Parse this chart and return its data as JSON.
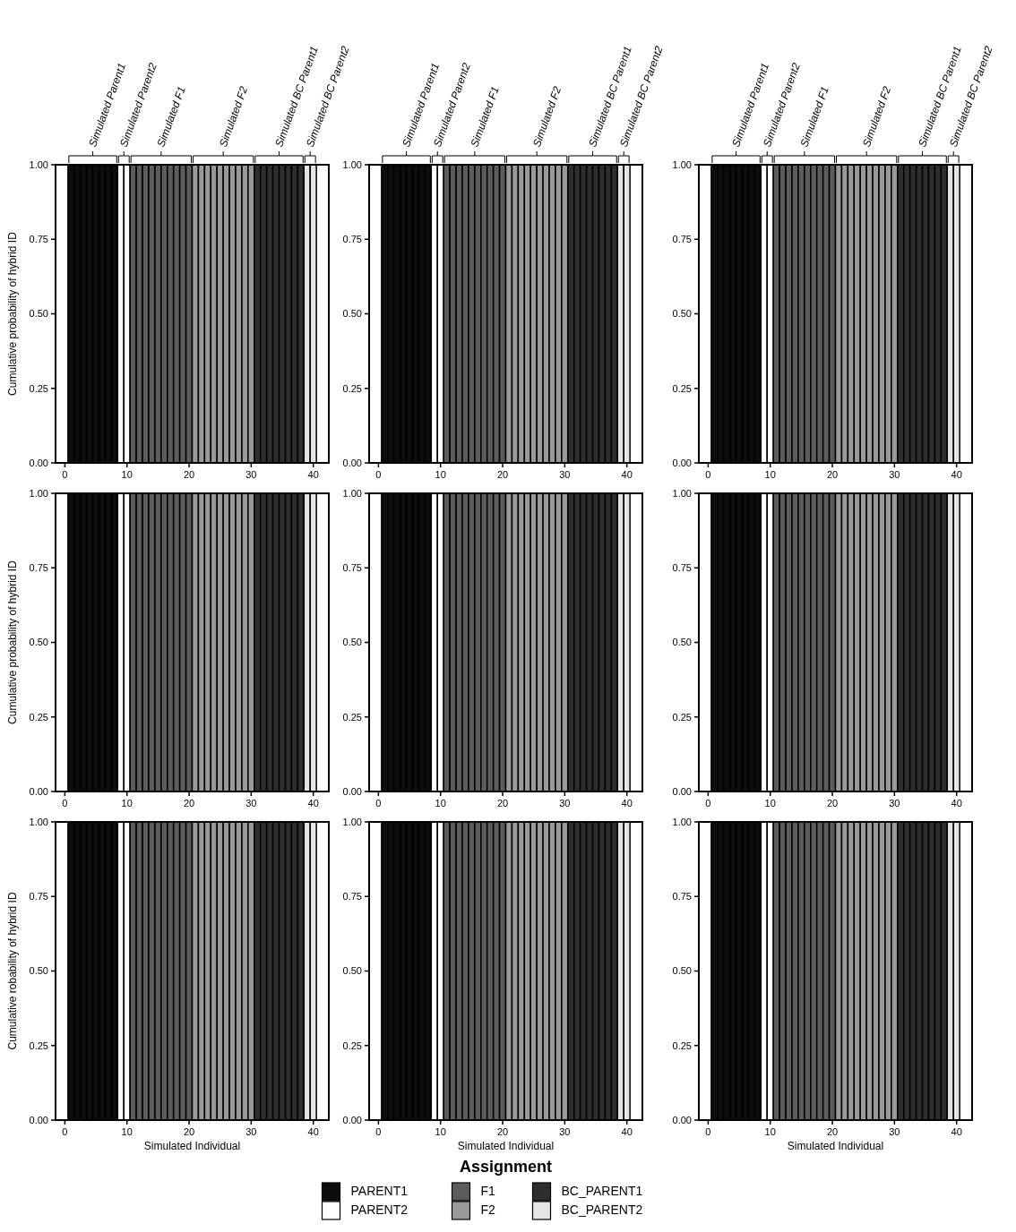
{
  "chart_data": [
    {
      "type": "bar",
      "ylabel": "Cumulative probability of hybrid ID",
      "xlim": [
        -1.5,
        42.5
      ],
      "xticks": [
        0,
        10,
        20,
        30,
        40
      ],
      "ylim": [
        0,
        1
      ],
      "yticks": [
        {
          "value": 0,
          "label": "0.00"
        },
        {
          "value": 0.25,
          "label": "0.25"
        },
        {
          "value": 0.5,
          "label": "0.50"
        },
        {
          "value": 0.75,
          "label": "0.75"
        },
        {
          "value": 1,
          "label": "1.00"
        }
      ],
      "annotations": [
        {
          "text": "Simulated Parent1",
          "x": 4.5,
          "y": 1
        },
        {
          "text": "Simulated Parent2",
          "x": 9.5,
          "y": 1
        },
        {
          "text": "Simulated F1",
          "x": 15.5,
          "y": 1
        },
        {
          "text": "Simulated F2",
          "x": 25.5,
          "y": 1
        },
        {
          "text": "Simulated BC Parent1",
          "x": 34.5,
          "y": 1
        },
        {
          "text": "Simulated BC Parent2",
          "x": 39.5,
          "y": 1
        }
      ],
      "series": [
        {
          "color": "#0d0d0d",
          "x": [
            1,
            2,
            3,
            4,
            5,
            6,
            7,
            8
          ],
          "values": [
            1,
            1,
            1,
            1,
            1,
            1,
            1,
            1
          ]
        },
        {
          "color": "#ffffff",
          "x": [
            9,
            10
          ],
          "values": [
            1,
            1
          ]
        },
        {
          "color": "#5c5c5c",
          "x": [
            11,
            12,
            13,
            14,
            15,
            16,
            17,
            18,
            19,
            20
          ],
          "values": [
            1,
            1,
            1,
            1,
            1,
            1,
            1,
            1,
            1,
            1
          ]
        },
        {
          "color": "#999999",
          "x": [
            21,
            22,
            23,
            24,
            25,
            26,
            27,
            28,
            29,
            30
          ],
          "values": [
            1,
            1,
            1,
            1,
            1,
            1,
            1,
            1,
            1,
            1
          ]
        },
        {
          "color": "#2e2e2e",
          "x": [
            31,
            32,
            33,
            34,
            35,
            36,
            37,
            38
          ],
          "values": [
            1,
            1,
            1,
            1,
            1,
            1,
            1,
            1
          ]
        },
        {
          "color": "#e5e5e5",
          "x": [
            39,
            40
          ],
          "values": [
            1,
            1
          ]
        }
      ]
    },
    {
      "type": "bar",
      "xlim": [
        -1.5,
        42.5
      ],
      "xticks": [
        0,
        10,
        20,
        30,
        40
      ],
      "ylim": [
        0,
        1
      ],
      "yticks": [
        {
          "value": 0,
          "label": "0.00"
        },
        {
          "value": 0.25,
          "label": "0.25"
        },
        {
          "value": 0.5,
          "label": "0.50"
        },
        {
          "value": 0.75,
          "label": "0.75"
        },
        {
          "value": 1,
          "label": "1.00"
        }
      ],
      "annotations": [
        {
          "text": "Simulated Parent1",
          "x": 4.5,
          "y": 1
        },
        {
          "text": "Simulated Parent2",
          "x": 9.5,
          "y": 1
        },
        {
          "text": "Simulated F1",
          "x": 15.5,
          "y": 1
        },
        {
          "text": "Simulated F2",
          "x": 25.5,
          "y": 1
        },
        {
          "text": "Simulated BC Parent1",
          "x": 34.5,
          "y": 1
        },
        {
          "text": "Simulated BC Parent2",
          "x": 39.5,
          "y": 1
        }
      ],
      "series": [
        {
          "color": "#0d0d0d",
          "x": [
            1,
            2,
            3,
            4,
            5,
            6,
            7,
            8
          ],
          "values": [
            1,
            1,
            1,
            1,
            1,
            1,
            1,
            1
          ]
        },
        {
          "color": "#ffffff",
          "x": [
            9,
            10
          ],
          "values": [
            1,
            1
          ]
        },
        {
          "color": "#5c5c5c",
          "x": [
            11,
            12,
            13,
            14,
            15,
            16,
            17,
            18,
            19,
            20
          ],
          "values": [
            1,
            1,
            1,
            1,
            1,
            1,
            1,
            1,
            1,
            1
          ]
        },
        {
          "color": "#999999",
          "x": [
            21,
            22,
            23,
            24,
            25,
            26,
            27,
            28,
            29,
            30
          ],
          "values": [
            1,
            1,
            1,
            1,
            1,
            1,
            1,
            1,
            1,
            1
          ]
        },
        {
          "color": "#2e2e2e",
          "x": [
            31,
            32,
            33,
            34,
            35,
            36,
            37,
            38
          ],
          "values": [
            1,
            1,
            1,
            1,
            1,
            1,
            1,
            1
          ]
        },
        {
          "color": "#e5e5e5",
          "x": [
            39,
            40
          ],
          "values": [
            1,
            1
          ]
        }
      ]
    },
    {
      "type": "bar",
      "xlim": [
        -1.5,
        42.5
      ],
      "xticks": [
        0,
        10,
        20,
        30,
        40
      ],
      "ylim": [
        0,
        1
      ],
      "yticks": [
        {
          "value": 0,
          "label": "0.00"
        },
        {
          "value": 0.25,
          "label": "0.25"
        },
        {
          "value": 0.5,
          "label": "0.50"
        },
        {
          "value": 0.75,
          "label": "0.75"
        },
        {
          "value": 1,
          "label": "1.00"
        }
      ],
      "annotations": [
        {
          "text": "Simulated Parent1",
          "x": 4.5,
          "y": 1
        },
        {
          "text": "Simulated Parent2",
          "x": 9.5,
          "y": 1
        },
        {
          "text": "Simulated F1",
          "x": 15.5,
          "y": 1
        },
        {
          "text": "Simulated F2",
          "x": 25.5,
          "y": 1
        },
        {
          "text": "Simulated BC Parent1",
          "x": 34.5,
          "y": 1
        },
        {
          "text": "Simulated BC Parent2",
          "x": 39.5,
          "y": 1
        }
      ],
      "series": [
        {
          "color": "#0d0d0d",
          "x": [
            1,
            2,
            3,
            4,
            5,
            6,
            7,
            8
          ],
          "values": [
            1,
            1,
            1,
            1,
            1,
            1,
            1,
            1
          ]
        },
        {
          "color": "#ffffff",
          "x": [
            9,
            10
          ],
          "values": [
            1,
            1
          ]
        },
        {
          "color": "#5c5c5c",
          "x": [
            11,
            12,
            13,
            14,
            15,
            16,
            17,
            18,
            19,
            20
          ],
          "values": [
            1,
            1,
            1,
            1,
            1,
            1,
            1,
            1,
            1,
            1
          ]
        },
        {
          "color": "#999999",
          "x": [
            21,
            22,
            23,
            24,
            25,
            26,
            27,
            28,
            29,
            30
          ],
          "values": [
            1,
            1,
            1,
            1,
            1,
            1,
            1,
            1,
            1,
            1
          ]
        },
        {
          "color": "#2e2e2e",
          "x": [
            31,
            32,
            33,
            34,
            35,
            36,
            37,
            38
          ],
          "values": [
            1,
            1,
            1,
            1,
            1,
            1,
            1,
            1
          ]
        },
        {
          "color": "#e5e5e5",
          "x": [
            39,
            40
          ],
          "values": [
            1,
            1
          ]
        }
      ]
    },
    {
      "type": "bar",
      "ylabel": "Cumulative probability of hybrid ID",
      "xlim": [
        -1.5,
        42.5
      ],
      "xticks": [
        0,
        10,
        20,
        30,
        40
      ],
      "ylim": [
        0,
        1
      ],
      "yticks": [
        {
          "value": 0,
          "label": "0.00"
        },
        {
          "value": 0.25,
          "label": "0.25"
        },
        {
          "value": 0.5,
          "label": "0.50"
        },
        {
          "value": 0.75,
          "label": "0.75"
        },
        {
          "value": 1,
          "label": "1.00"
        }
      ],
      "series": [
        {
          "color": "#0d0d0d",
          "x": [
            1,
            2,
            3,
            4,
            5,
            6,
            7,
            8
          ],
          "values": [
            1,
            1,
            1,
            1,
            1,
            1,
            1,
            1
          ]
        },
        {
          "color": "#ffffff",
          "x": [
            9,
            10
          ],
          "values": [
            1,
            1
          ]
        },
        {
          "color": "#5c5c5c",
          "x": [
            11,
            12,
            13,
            14,
            15,
            16,
            17,
            18,
            19,
            20
          ],
          "values": [
            1,
            1,
            1,
            1,
            1,
            1,
            1,
            1,
            1,
            1
          ]
        },
        {
          "color": "#999999",
          "x": [
            21,
            22,
            23,
            24,
            25,
            26,
            27,
            28,
            29,
            30
          ],
          "values": [
            1,
            1,
            1,
            1,
            1,
            1,
            1,
            1,
            1,
            1
          ]
        },
        {
          "color": "#2e2e2e",
          "x": [
            31,
            32,
            33,
            34,
            35,
            36,
            37,
            38
          ],
          "values": [
            1,
            1,
            1,
            1,
            1,
            1,
            1,
            1
          ]
        },
        {
          "color": "#e5e5e5",
          "x": [
            39,
            40
          ],
          "values": [
            1,
            1
          ]
        }
      ]
    },
    {
      "type": "bar",
      "xlim": [
        -1.5,
        42.5
      ],
      "xticks": [
        0,
        10,
        20,
        30,
        40
      ],
      "ylim": [
        0,
        1
      ],
      "yticks": [
        {
          "value": 0,
          "label": "0.00"
        },
        {
          "value": 0.25,
          "label": "0.25"
        },
        {
          "value": 0.5,
          "label": "0.50"
        },
        {
          "value": 0.75,
          "label": "0.75"
        },
        {
          "value": 1,
          "label": "1.00"
        }
      ],
      "series": [
        {
          "color": "#0d0d0d",
          "x": [
            1,
            2,
            3,
            4,
            5,
            6,
            7,
            8
          ],
          "values": [
            1,
            1,
            1,
            1,
            1,
            1,
            1,
            1
          ]
        },
        {
          "color": "#ffffff",
          "x": [
            9,
            10
          ],
          "values": [
            1,
            1
          ]
        },
        {
          "color": "#5c5c5c",
          "x": [
            11,
            12,
            13,
            14,
            15,
            16,
            17,
            18,
            19,
            20
          ],
          "values": [
            1,
            1,
            1,
            1,
            1,
            1,
            1,
            1,
            1,
            1
          ]
        },
        {
          "color": "#999999",
          "x": [
            21,
            22,
            23,
            24,
            25,
            26,
            27,
            28,
            29,
            30
          ],
          "values": [
            1,
            1,
            1,
            1,
            1,
            1,
            1,
            1,
            1,
            1
          ]
        },
        {
          "color": "#2e2e2e",
          "x": [
            31,
            32,
            33,
            34,
            35,
            36,
            37,
            38
          ],
          "values": [
            1,
            1,
            1,
            1,
            1,
            1,
            1,
            1
          ]
        },
        {
          "color": "#e5e5e5",
          "x": [
            39,
            40
          ],
          "values": [
            1,
            1
          ]
        }
      ]
    },
    {
      "type": "bar",
      "xlim": [
        -1.5,
        42.5
      ],
      "xticks": [
        0,
        10,
        20,
        30,
        40
      ],
      "ylim": [
        0,
        1
      ],
      "yticks": [
        {
          "value": 0,
          "label": "0.00"
        },
        {
          "value": 0.25,
          "label": "0.25"
        },
        {
          "value": 0.5,
          "label": "0.50"
        },
        {
          "value": 0.75,
          "label": "0.75"
        },
        {
          "value": 1,
          "label": "1.00"
        }
      ],
      "series": [
        {
          "color": "#0d0d0d",
          "x": [
            1,
            2,
            3,
            4,
            5,
            6,
            7,
            8
          ],
          "values": [
            1,
            1,
            1,
            1,
            1,
            1,
            1,
            1
          ]
        },
        {
          "color": "#ffffff",
          "x": [
            9,
            10
          ],
          "values": [
            1,
            1
          ]
        },
        {
          "color": "#5c5c5c",
          "x": [
            11,
            12,
            13,
            14,
            15,
            16,
            17,
            18,
            19,
            20
          ],
          "values": [
            1,
            1,
            1,
            1,
            1,
            1,
            1,
            1,
            1,
            1
          ]
        },
        {
          "color": "#999999",
          "x": [
            21,
            22,
            23,
            24,
            25,
            26,
            27,
            28,
            29,
            30
          ],
          "values": [
            1,
            1,
            1,
            1,
            1,
            1,
            1,
            1,
            1,
            1
          ]
        },
        {
          "color": "#2e2e2e",
          "x": [
            31,
            32,
            33,
            34,
            35,
            36,
            37,
            38
          ],
          "values": [
            1,
            1,
            1,
            1,
            1,
            1,
            1,
            1
          ]
        },
        {
          "color": "#e5e5e5",
          "x": [
            39,
            40
          ],
          "values": [
            1,
            1
          ]
        }
      ]
    },
    {
      "type": "bar",
      "ylabel": "Cumulative robability of hybrid ID",
      "xlabel": "Simulated Individual",
      "xlim": [
        -1.5,
        42.5
      ],
      "xticks": [
        0,
        10,
        20,
        30,
        40
      ],
      "ylim": [
        0,
        1
      ],
      "yticks": [
        {
          "value": 0,
          "label": "0.00"
        },
        {
          "value": 0.25,
          "label": "0.25"
        },
        {
          "value": 0.5,
          "label": "0.50"
        },
        {
          "value": 0.75,
          "label": "0.75"
        },
        {
          "value": 1,
          "label": "1.00"
        }
      ],
      "series": [
        {
          "color": "#0d0d0d",
          "x": [
            1,
            2,
            3,
            4,
            5,
            6,
            7,
            8
          ],
          "values": [
            1,
            1,
            1,
            1,
            1,
            1,
            1,
            1
          ]
        },
        {
          "color": "#ffffff",
          "x": [
            9,
            10
          ],
          "values": [
            1,
            1
          ]
        },
        {
          "color": "#5c5c5c",
          "x": [
            11,
            12,
            13,
            14,
            15,
            16,
            17,
            18,
            19,
            20
          ],
          "values": [
            1,
            1,
            1,
            1,
            1,
            1,
            1,
            1,
            1,
            1
          ]
        },
        {
          "color": "#999999",
          "x": [
            21,
            22,
            23,
            24,
            25,
            26,
            27,
            28,
            29,
            30
          ],
          "values": [
            1,
            1,
            1,
            1,
            1,
            1,
            1,
            1,
            1,
            1
          ]
        },
        {
          "color": "#2e2e2e",
          "x": [
            31,
            32,
            33,
            34,
            35,
            36,
            37,
            38
          ],
          "values": [
            1,
            1,
            1,
            1,
            1,
            1,
            1,
            1
          ]
        },
        {
          "color": "#e5e5e5",
          "x": [
            39,
            40
          ],
          "values": [
            1,
            1
          ]
        }
      ]
    },
    {
      "type": "bar",
      "xlabel": "Simulated Individual",
      "legend": "bottom",
      "legend_title": "Assignment",
      "xlim": [
        -1.5,
        42.5
      ],
      "xticks": [
        0,
        10,
        20,
        30,
        40
      ],
      "ylim": [
        0,
        1
      ],
      "yticks": [
        {
          "value": 0,
          "label": "0.00"
        },
        {
          "value": 0.25,
          "label": "0.25"
        },
        {
          "value": 0.5,
          "label": "0.50"
        },
        {
          "value": 0.75,
          "label": "0.75"
        },
        {
          "value": 1,
          "label": "1.00"
        }
      ],
      "series": [
        {
          "name": "PARENT1",
          "color": "#0d0d0d",
          "x": [
            1,
            2,
            3,
            4,
            5,
            6,
            7,
            8
          ],
          "values": [
            1,
            1,
            1,
            1,
            1,
            1,
            1,
            1
          ]
        },
        {
          "name": "PARENT2",
          "color": "#ffffff",
          "x": [
            9,
            10
          ],
          "values": [
            1,
            1
          ]
        },
        {
          "name": "F1",
          "color": "#5c5c5c",
          "x": [
            11,
            12,
            13,
            14,
            15,
            16,
            17,
            18,
            19,
            20
          ],
          "values": [
            1,
            1,
            1,
            1,
            1,
            1,
            1,
            1,
            1,
            1
          ]
        },
        {
          "name": "F2",
          "color": "#999999",
          "x": [
            21,
            22,
            23,
            24,
            25,
            26,
            27,
            28,
            29,
            30
          ],
          "values": [
            1,
            1,
            1,
            1,
            1,
            1,
            1,
            1,
            1,
            1
          ]
        },
        {
          "name": "BC_PARENT1",
          "color": "#2e2e2e",
          "x": [
            31,
            32,
            33,
            34,
            35,
            36,
            37,
            38
          ],
          "values": [
            1,
            1,
            1,
            1,
            1,
            1,
            1,
            1
          ]
        },
        {
          "name": "BC_PARENT2",
          "color": "#e5e5e5",
          "x": [
            39,
            40
          ],
          "values": [
            1,
            1
          ]
        }
      ]
    },
    {
      "type": "bar",
      "xlabel": "Simulated Individual",
      "xlim": [
        -1.5,
        42.5
      ],
      "xticks": [
        0,
        10,
        20,
        30,
        40
      ],
      "ylim": [
        0,
        1
      ],
      "yticks": [
        {
          "value": 0,
          "label": "0.00"
        },
        {
          "value": 0.25,
          "label": "0.25"
        },
        {
          "value": 0.5,
          "label": "0.50"
        },
        {
          "value": 0.75,
          "label": "0.75"
        },
        {
          "value": 1,
          "label": "1.00"
        }
      ],
      "series": [
        {
          "color": "#0d0d0d",
          "x": [
            1,
            2,
            3,
            4,
            5,
            6,
            7,
            8
          ],
          "values": [
            1,
            1,
            1,
            1,
            1,
            1,
            1,
            1
          ]
        },
        {
          "color": "#ffffff",
          "x": [
            9,
            10
          ],
          "values": [
            1,
            1
          ]
        },
        {
          "color": "#5c5c5c",
          "x": [
            11,
            12,
            13,
            14,
            15,
            16,
            17,
            18,
            19,
            20
          ],
          "values": [
            1,
            1,
            1,
            1,
            1,
            1,
            1,
            1,
            1,
            1
          ]
        },
        {
          "color": "#999999",
          "x": [
            21,
            22,
            23,
            24,
            25,
            26,
            27,
            28,
            29,
            30
          ],
          "values": [
            1,
            1,
            1,
            1,
            1,
            1,
            1,
            1,
            1,
            1
          ]
        },
        {
          "color": "#2e2e2e",
          "x": [
            31,
            32,
            33,
            34,
            35,
            36,
            37,
            38
          ],
          "values": [
            1,
            1,
            1,
            1,
            1,
            1,
            1,
            1
          ]
        },
        {
          "color": "#e5e5e5",
          "x": [
            39,
            40
          ],
          "values": [
            1,
            1
          ]
        }
      ]
    }
  ]
}
